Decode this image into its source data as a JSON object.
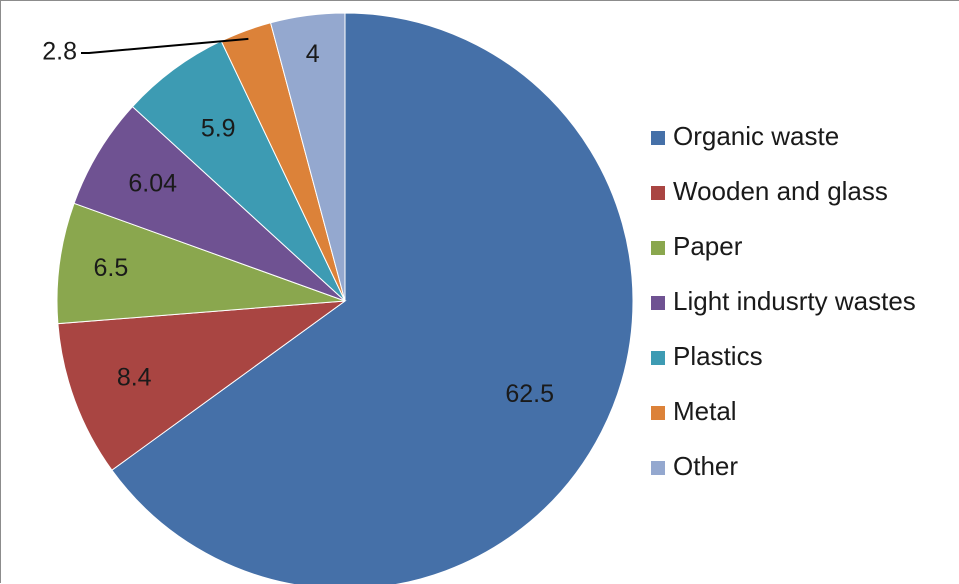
{
  "chart_data": {
    "type": "pie",
    "categories": [
      "Organic waste",
      "Wooden and glass",
      "Paper",
      "Light indusrty wastes",
      "Plastics",
      "Metal",
      "Other"
    ],
    "values": [
      62.5,
      8.4,
      6.5,
      6.04,
      5.9,
      2.8,
      4
    ],
    "labels": [
      "62.5",
      "8.4",
      "6.5",
      "6.04",
      "5.9",
      "2.8",
      "4"
    ],
    "colors": [
      "#4570a8",
      "#a94542",
      "#8aa74e",
      "#6f5292",
      "#3d9bb3",
      "#dc8239",
      "#94a8cf"
    ],
    "start_angle_deg": 0,
    "direction": "clockwise",
    "legend_position": "right",
    "title": ""
  }
}
